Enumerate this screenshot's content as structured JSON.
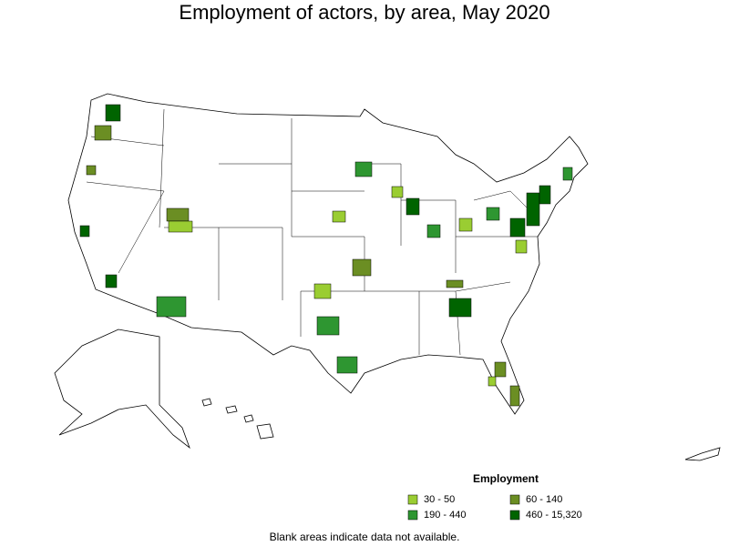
{
  "title": "Employment of actors, by area, May 2020",
  "legend": {
    "title": "Employment",
    "items": [
      {
        "label": "30 - 50",
        "color": "#9acd32"
      },
      {
        "label": "60 - 140",
        "color": "#6b8e23"
      },
      {
        "label": "190 - 440",
        "color": "#2e9631"
      },
      {
        "label": "460 - 15,320",
        "color": "#006400"
      }
    ]
  },
  "note": "Blank areas indicate data not available."
}
